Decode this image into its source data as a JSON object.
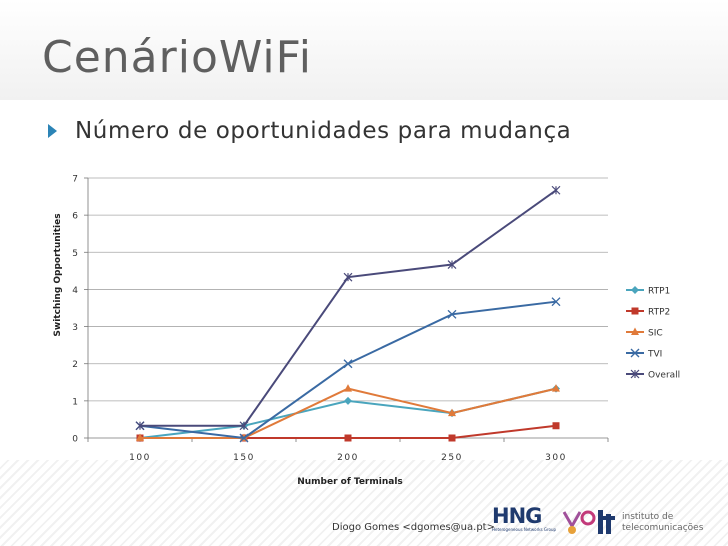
{
  "slide": {
    "title": "CenárioWiFi",
    "bullet": "Número de oportunidades para mudança",
    "footer": "Diogo Gomes <dgomes@ua.pt>",
    "logo_hng": "HNG",
    "logo_hng_sub": "Heterogeneous Networks Group",
    "logo_it_line1": "instituto de",
    "logo_it_line2": "telecomunicações"
  },
  "chart_data": {
    "type": "line",
    "title": "",
    "xlabel": "Number of Terminals",
    "ylabel": "Switching Opportunities",
    "categories": [
      "100",
      "150",
      "200",
      "250",
      "300"
    ],
    "ylim": [
      0,
      7
    ],
    "yticks": [
      0,
      1,
      2,
      3,
      4,
      5,
      6,
      7
    ],
    "grid": true,
    "legend_position": "right",
    "series": [
      {
        "name": "RTP1",
        "color": "#4aa5bd",
        "marker": "diamond",
        "values": [
          0,
          0.33,
          1,
          0.67,
          1.33
        ]
      },
      {
        "name": "RTP2",
        "color": "#c0392b",
        "marker": "square",
        "values": [
          0,
          0,
          0,
          0,
          0.33
        ]
      },
      {
        "name": "SIC",
        "color": "#e07a3a",
        "marker": "triangle",
        "values": [
          0,
          0,
          1.33,
          0.67,
          1.33
        ]
      },
      {
        "name": "TVI",
        "color": "#3a6aa3",
        "marker": "x",
        "values": [
          0.33,
          0,
          2,
          3.33,
          3.67
        ]
      },
      {
        "name": "Overall",
        "color": "#4a4a7a",
        "marker": "star",
        "values": [
          0.33,
          0.33,
          4.33,
          4.67,
          6.67
        ]
      }
    ]
  }
}
